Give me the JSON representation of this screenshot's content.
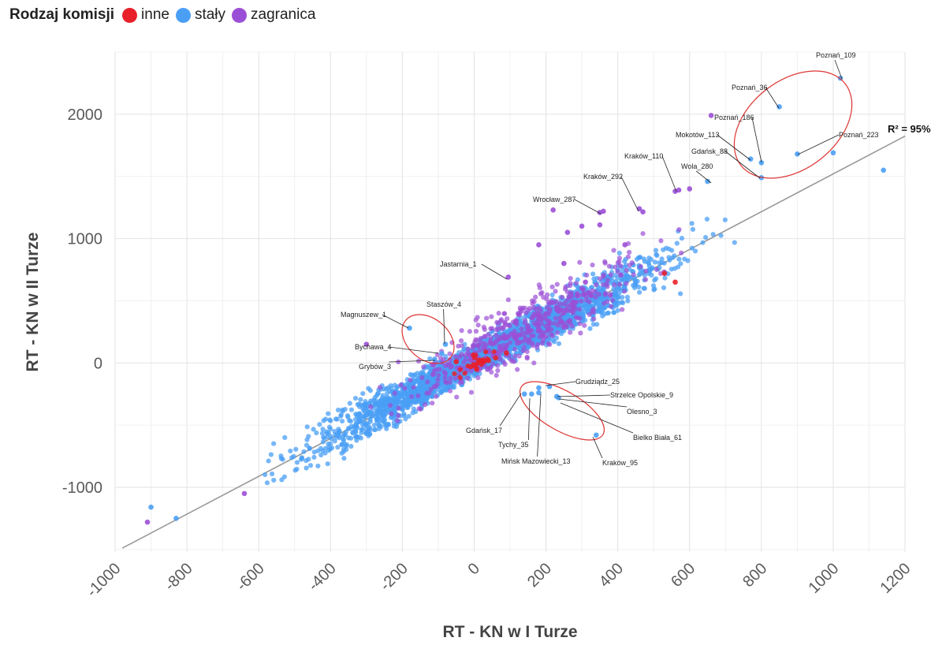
{
  "legend": {
    "title": "Rodzaj komisji",
    "items": [
      {
        "label": "inne",
        "color": "#e8202a"
      },
      {
        "label": "stały",
        "color": "#4a9ff5"
      },
      {
        "label": "zagranica",
        "color": "#9b4fd6"
      }
    ]
  },
  "chart_data": {
    "type": "scatter",
    "xlabel": "RT - KN w I Turze",
    "ylabel": "RT - KN w II Turze",
    "xlim": [
      -1000,
      1200
    ],
    "ylim": [
      -1520,
      2500
    ],
    "x_ticks": [
      -1000,
      -800,
      -600,
      -400,
      -200,
      0,
      200,
      400,
      600,
      800,
      1000,
      1200
    ],
    "y_ticks": [
      -1000,
      0,
      1000,
      2000
    ],
    "grid": true,
    "legend_position": "top-left",
    "trendline": {
      "slope": 1.52,
      "intercept": 0,
      "label": "R² = 95%",
      "color": "#999999"
    },
    "series": [
      {
        "name": "inne",
        "color": "#e8202a",
        "points": [
          [
            20,
            -10
          ],
          [
            40,
            20
          ],
          [
            -10,
            -30
          ],
          [
            60,
            40
          ],
          [
            530,
            720
          ],
          [
            560,
            650
          ],
          [
            -50,
            10
          ],
          [
            90,
            80
          ]
        ]
      },
      {
        "name": "stały",
        "color": "#4a9ff5",
        "points": [
          [
            1020,
            2290
          ],
          [
            850,
            2060
          ],
          [
            800,
            1610
          ],
          [
            770,
            1640
          ],
          [
            800,
            1490
          ],
          [
            900,
            1680
          ],
          [
            1000,
            1690
          ],
          [
            1140,
            1550
          ],
          [
            650,
            1460
          ],
          [
            -180,
            280
          ],
          [
            -80,
            150
          ],
          [
            -110,
            30
          ],
          [
            -90,
            75
          ],
          [
            180,
            -200
          ],
          [
            210,
            -190
          ],
          [
            230,
            -270
          ],
          [
            235,
            -280
          ],
          [
            340,
            -580
          ],
          [
            140,
            -250
          ],
          [
            160,
            -250
          ],
          [
            180,
            -240
          ],
          [
            -830,
            -1250
          ],
          [
            -900,
            -1160
          ]
        ]
      },
      {
        "name": "zagranica",
        "color": "#9b4fd6",
        "points": [
          [
            660,
            1990
          ],
          [
            350,
            1210
          ],
          [
            360,
            1220
          ],
          [
            460,
            1240
          ],
          [
            470,
            1215
          ],
          [
            560,
            1380
          ],
          [
            570,
            1390
          ],
          [
            220,
            1230
          ],
          [
            300,
            1100
          ],
          [
            95,
            690
          ],
          [
            -910,
            -1280
          ],
          [
            -640,
            -1050
          ],
          [
            -300,
            150
          ],
          [
            350,
            1110
          ],
          [
            600,
            1400
          ],
          [
            420,
            950
          ],
          [
            250,
            800
          ],
          [
            260,
            1050
          ],
          [
            180,
            950
          ],
          [
            310,
            650
          ]
        ]
      }
    ],
    "annotations": [
      "Poznań_109",
      "Poznań_36",
      "Poznań_186",
      "Mokotów_113",
      "Gdańsk_88",
      "Wola_280",
      "Poznań_223",
      "Kraków_110",
      "Kraków_292",
      "Wrocław_287",
      "Jastarnia_1",
      "Magnuszew_1",
      "Staszów_4",
      "Bychawa_4",
      "Grybów_3",
      "Grudziądz_25",
      "Strzelce Opolskie_9",
      "Olesno_3",
      "Bielko Biała_61",
      "Kraków_95",
      "Gdańsk_17",
      "Tychy_35",
      "Mińsk Mazowiecki_13"
    ]
  }
}
